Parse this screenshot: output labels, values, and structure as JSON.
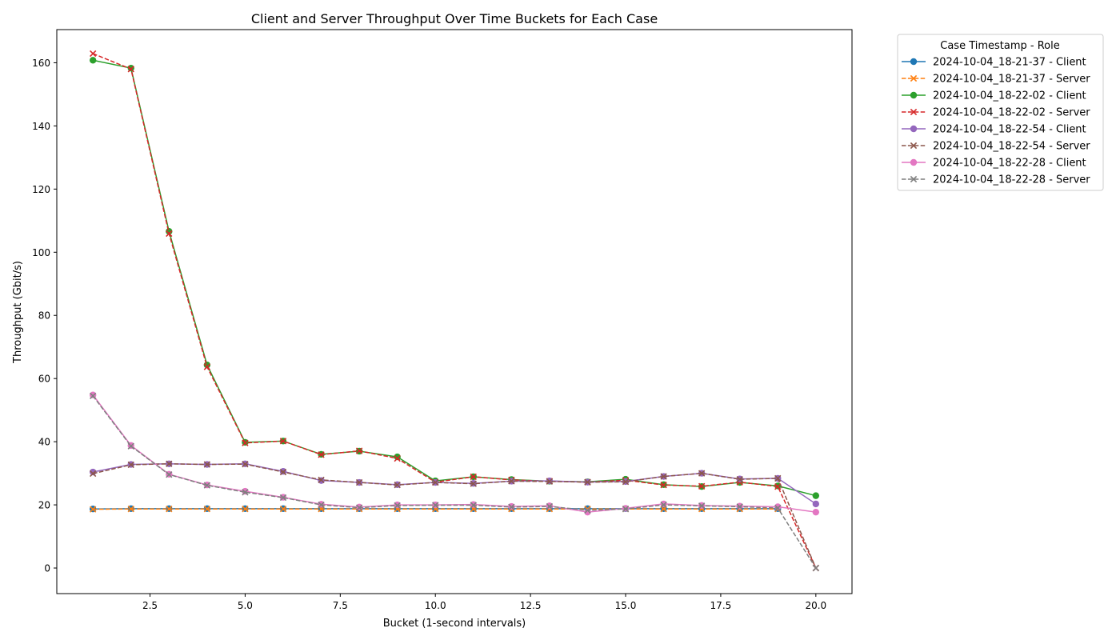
{
  "chart_data": {
    "type": "line",
    "title": "Client and Server Throughput Over Time Buckets for Each Case",
    "xlabel": "Bucket (1-second intervals)",
    "ylabel": "Throughput (Gbit/s)",
    "xlim": [
      0.05,
      20.95
    ],
    "ylim": [
      -8.1,
      170.5
    ],
    "xticks": [
      2.5,
      5.0,
      7.5,
      10.0,
      12.5,
      15.0,
      17.5,
      20.0
    ],
    "xtick_labels": [
      "2.5",
      "5.0",
      "7.5",
      "10.0",
      "12.5",
      "15.0",
      "17.5",
      "20.0"
    ],
    "yticks": [
      0,
      20,
      40,
      60,
      80,
      100,
      120,
      140,
      160
    ],
    "ytick_labels": [
      "0",
      "20",
      "40",
      "60",
      "80",
      "100",
      "120",
      "140",
      "160"
    ],
    "grid": false,
    "legend": {
      "title": "Case Timestamp - Role",
      "placement": "outside-right"
    },
    "x": [
      1,
      2,
      3,
      4,
      5,
      6,
      7,
      8,
      9,
      10,
      11,
      12,
      13,
      14,
      15,
      16,
      17,
      18,
      19,
      20
    ],
    "series": [
      {
        "name": "2024-10-04_18-21-37 - Client",
        "color": "#1f77b4",
        "dash": "solid",
        "marker": "circle",
        "values": [
          18.7,
          18.8,
          18.8,
          18.8,
          18.8,
          18.8,
          18.8,
          18.8,
          18.8,
          18.8,
          18.8,
          18.8,
          18.8,
          18.8,
          18.8,
          18.8,
          18.8,
          18.8,
          18.8,
          null
        ]
      },
      {
        "name": "2024-10-04_18-21-37 - Server",
        "color": "#ff7f0e",
        "dash": "dashed",
        "marker": "x",
        "values": [
          18.6,
          18.7,
          18.7,
          18.7,
          18.7,
          18.7,
          18.7,
          18.7,
          18.7,
          18.7,
          18.7,
          18.7,
          18.7,
          18.7,
          18.7,
          18.7,
          18.7,
          18.7,
          18.7,
          null
        ]
      },
      {
        "name": "2024-10-04_18-22-02 - Client",
        "color": "#2ca02c",
        "dash": "solid",
        "marker": "circle",
        "values": [
          160.8,
          158.3,
          106.6,
          64.3,
          39.8,
          40.2,
          36.0,
          37.0,
          35.2,
          27.6,
          28.9,
          28.0,
          27.5,
          27.3,
          28.1,
          26.4,
          25.8,
          27.1,
          26.0,
          22.9
        ]
      },
      {
        "name": "2024-10-04_18-22-02 - Server",
        "color": "#d62728",
        "dash": "dashed",
        "marker": "x",
        "values": [
          162.9,
          158.0,
          105.9,
          63.7,
          39.6,
          40.2,
          35.9,
          37.1,
          34.7,
          27.2,
          28.9,
          27.9,
          27.5,
          27.2,
          27.8,
          26.3,
          25.9,
          27.2,
          25.8,
          0.0
        ]
      },
      {
        "name": "2024-10-04_18-22-54 - Client",
        "color": "#9467bd",
        "dash": "solid",
        "marker": "circle",
        "values": [
          30.4,
          32.8,
          33.0,
          32.8,
          33.0,
          30.6,
          27.7,
          27.1,
          26.4,
          27.1,
          26.8,
          27.5,
          27.6,
          27.2,
          27.4,
          29.0,
          30.0,
          28.2,
          28.4,
          20.3
        ]
      },
      {
        "name": "2024-10-04_18-22-54 - Server",
        "color": "#8c564b",
        "dash": "dashed",
        "marker": "x",
        "values": [
          29.9,
          32.7,
          33.0,
          32.8,
          32.9,
          30.4,
          27.9,
          27.1,
          26.3,
          27.1,
          26.7,
          27.5,
          27.4,
          27.2,
          27.3,
          29.0,
          30.0,
          28.1,
          28.4,
          0.0
        ]
      },
      {
        "name": "2024-10-04_18-22-28 - Client",
        "color": "#e377c2",
        "dash": "solid",
        "marker": "circle",
        "values": [
          54.8,
          38.8,
          29.7,
          26.3,
          24.3,
          22.4,
          20.2,
          19.3,
          20.0,
          20.0,
          20.1,
          19.5,
          19.7,
          17.7,
          18.9,
          20.3,
          19.8,
          19.6,
          19.4,
          17.7
        ]
      },
      {
        "name": "2024-10-04_18-22-28 - Server",
        "color": "#7f7f7f",
        "dash": "dashed",
        "marker": "x",
        "values": [
          54.5,
          38.6,
          29.6,
          26.2,
          24.0,
          22.3,
          20.0,
          19.1,
          19.8,
          19.9,
          19.9,
          19.3,
          19.5,
          18.3,
          18.7,
          20.0,
          19.7,
          19.4,
          19.0,
          0.0
        ]
      }
    ]
  }
}
